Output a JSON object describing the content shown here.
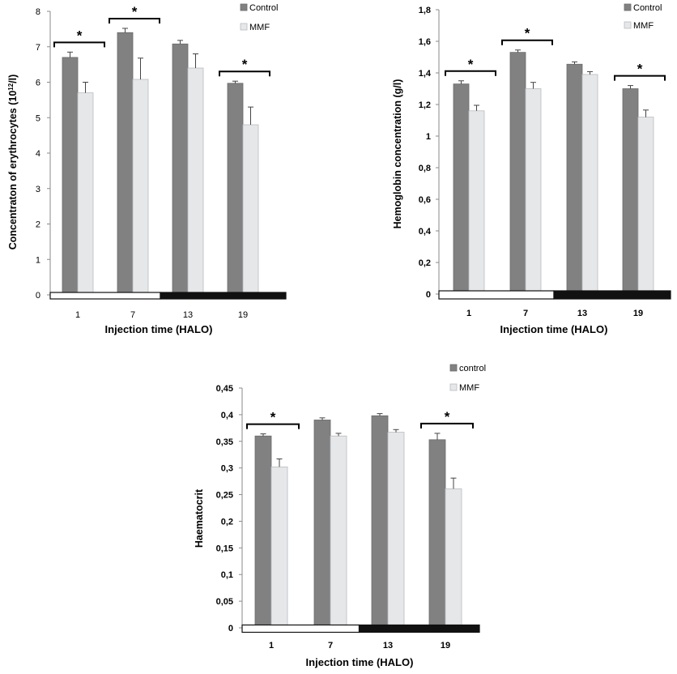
{
  "colors": {
    "control_bar": "#818181",
    "control_edge": "#6a6a6a",
    "mmf_bar": "#e6e7e9",
    "mmf_edge": "#b9bbbf",
    "light_phase": "#ffffff",
    "dark_phase": "#111111",
    "axis": "#8a8a8a"
  },
  "chart_data": [
    {
      "type": "bar",
      "panel": "top-left",
      "xlabel": "Injection time  (HALO)",
      "ylabel_main": "Concentraton of erythrocytes (10",
      "ylabel_sup": "12",
      "ylabel_end": "/l)",
      "ylim": [
        0,
        8
      ],
      "y_ticks": [
        "0",
        "1",
        "2",
        "3",
        "4",
        "5",
        "6",
        "7",
        "8"
      ],
      "categories": [
        "1",
        "7",
        "13",
        "19"
      ],
      "series": [
        {
          "name": "Control",
          "values": [
            6.7,
            7.4,
            7.08,
            5.97
          ],
          "errors": [
            0.15,
            0.12,
            0.1,
            0.06
          ]
        },
        {
          "name": "MMF",
          "values": [
            5.7,
            6.08,
            6.4,
            4.8
          ],
          "errors": [
            0.3,
            0.6,
            0.4,
            0.5
          ]
        }
      ],
      "significance": [
        true,
        true,
        false,
        true
      ],
      "significance_marker": "*",
      "legend_position": "top-right",
      "light_phase_categories": 2
    },
    {
      "type": "bar",
      "panel": "top-right",
      "xlabel": "Injection time  (HALO)",
      "ylabel_main": "Hemoglobin concentration (g/l)",
      "ylim": [
        0,
        1.8
      ],
      "y_ticks": [
        "0",
        "0,2",
        "0,4",
        "0,6",
        "0,8",
        "1",
        "1,2",
        "1,4",
        "1,6",
        "1,8"
      ],
      "categories": [
        "1",
        "7",
        "13",
        "19"
      ],
      "series": [
        {
          "name": "Control",
          "values": [
            1.33,
            1.53,
            1.455,
            1.3
          ],
          "errors": [
            0.02,
            0.015,
            0.015,
            0.02
          ]
        },
        {
          "name": "MMF",
          "values": [
            1.16,
            1.3,
            1.39,
            1.12
          ],
          "errors": [
            0.035,
            0.04,
            0.018,
            0.045
          ]
        }
      ],
      "significance": [
        true,
        true,
        false,
        true
      ],
      "significance_marker": "*",
      "legend_position": "top-right",
      "light_phase_categories": 2
    },
    {
      "type": "bar",
      "panel": "bottom",
      "xlabel": "Injection time  (HALO)",
      "ylabel_main": "Haematocrit",
      "ylim": [
        0,
        0.45
      ],
      "y_ticks": [
        "0",
        "0,05",
        "0,1",
        "0,15",
        "0,2",
        "0,25",
        "0,3",
        "0,35",
        "0,4",
        "0,45"
      ],
      "categories": [
        "1",
        "7",
        "13",
        "19"
      ],
      "series": [
        {
          "name": "control",
          "values": [
            0.36,
            0.39,
            0.398,
            0.353
          ],
          "errors": [
            0.004,
            0.004,
            0.004,
            0.012
          ]
        },
        {
          "name": "MMF",
          "values": [
            0.302,
            0.36,
            0.367,
            0.261
          ],
          "errors": [
            0.015,
            0.005,
            0.005,
            0.02
          ]
        }
      ],
      "significance": [
        true,
        false,
        false,
        true
      ],
      "significance_marker": "*",
      "legend_position": "top-right",
      "light_phase_categories": 2
    }
  ]
}
